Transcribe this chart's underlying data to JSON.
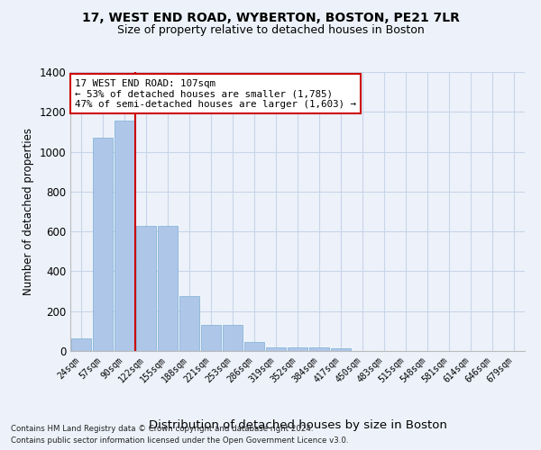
{
  "title1": "17, WEST END ROAD, WYBERTON, BOSTON, PE21 7LR",
  "title2": "Size of property relative to detached houses in Boston",
  "xlabel": "Distribution of detached houses by size in Boston",
  "ylabel": "Number of detached properties",
  "footnote1": "Contains HM Land Registry data © Crown copyright and database right 2024.",
  "footnote2": "Contains public sector information licensed under the Open Government Licence v3.0.",
  "categories": [
    "24sqm",
    "57sqm",
    "90sqm",
    "122sqm",
    "155sqm",
    "188sqm",
    "221sqm",
    "253sqm",
    "286sqm",
    "319sqm",
    "352sqm",
    "384sqm",
    "417sqm",
    "450sqm",
    "483sqm",
    "515sqm",
    "548sqm",
    "581sqm",
    "614sqm",
    "646sqm",
    "679sqm"
  ],
  "values": [
    65,
    1070,
    1155,
    630,
    630,
    275,
    130,
    130,
    45,
    20,
    20,
    20,
    15,
    0,
    0,
    0,
    0,
    0,
    0,
    0,
    0
  ],
  "bar_color": "#aec6e8",
  "bar_edge_color": "#7aafd4",
  "grid_color": "#c8d4e8",
  "background_color": "#edf2fa",
  "vline_x": 2.5,
  "vline_color": "#cc0000",
  "annotation_text": "17 WEST END ROAD: 107sqm\n← 53% of detached houses are smaller (1,785)\n47% of semi-detached houses are larger (1,603) →",
  "annotation_box_color": "#cc0000",
  "ylim": [
    0,
    1400
  ],
  "yticks": [
    0,
    200,
    400,
    600,
    800,
    1000,
    1200,
    1400
  ]
}
